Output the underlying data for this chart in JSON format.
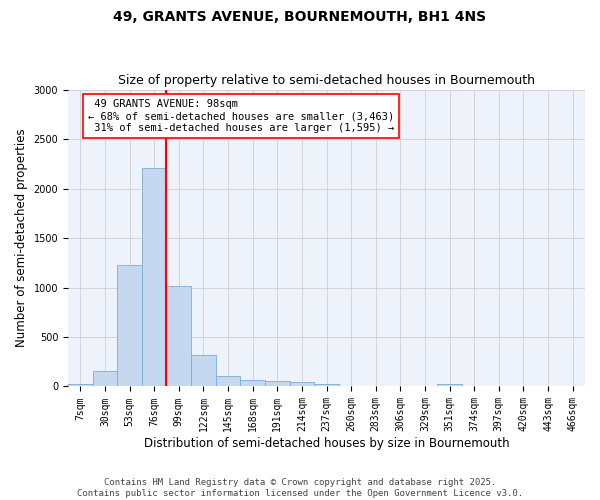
{
  "title": "49, GRANTS AVENUE, BOURNEMOUTH, BH1 4NS",
  "subtitle": "Size of property relative to semi-detached houses in Bournemouth",
  "xlabel": "Distribution of semi-detached houses by size in Bournemouth",
  "ylabel": "Number of semi-detached properties",
  "bar_color": "#c5d8f0",
  "bar_edge_color": "#7aadd4",
  "background_color": "#eef2fb",
  "grid_color": "#d0d0d0",
  "categories": [
    "7sqm",
    "30sqm",
    "53sqm",
    "76sqm",
    "99sqm",
    "122sqm",
    "145sqm",
    "168sqm",
    "191sqm",
    "214sqm",
    "237sqm",
    "260sqm",
    "283sqm",
    "306sqm",
    "329sqm",
    "351sqm",
    "374sqm",
    "397sqm",
    "420sqm",
    "443sqm",
    "466sqm"
  ],
  "values": [
    20,
    155,
    1230,
    2210,
    1020,
    315,
    110,
    65,
    55,
    45,
    20,
    0,
    0,
    0,
    0,
    30,
    0,
    0,
    0,
    0,
    0
  ],
  "ylim": [
    0,
    3000
  ],
  "yticks": [
    0,
    500,
    1000,
    1500,
    2000,
    2500,
    3000
  ],
  "property_label": "49 GRANTS AVENUE: 98sqm",
  "smaller_pct": "68%",
  "smaller_count": "3,463",
  "larger_pct": "31%",
  "larger_count": "1,595",
  "vertical_line_x": 3.5,
  "footer_line1": "Contains HM Land Registry data © Crown copyright and database right 2025.",
  "footer_line2": "Contains public sector information licensed under the Open Government Licence v3.0.",
  "title_fontsize": 10,
  "subtitle_fontsize": 9,
  "axis_label_fontsize": 8.5,
  "tick_fontsize": 7,
  "annotation_fontsize": 7.5,
  "footer_fontsize": 6.5
}
